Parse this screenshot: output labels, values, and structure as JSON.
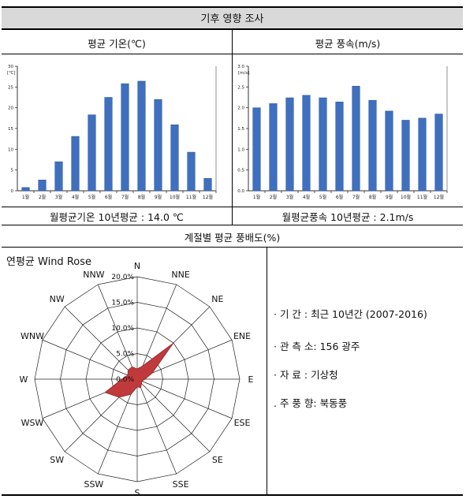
{
  "header": {
    "title": "기후 영향 조사"
  },
  "temp_panel": {
    "title": "평균 기온(℃)",
    "footer": "월평균기온 10년평균 : 14.0 ℃"
  },
  "wind_panel": {
    "title": "평균 풍속(m/s)",
    "footer": "월평균풍속 10년평균 : 2.1m/s"
  },
  "rose_section": {
    "title": "계절별 평균 풍배도(%)"
  },
  "info": {
    "period": "· 기    간 : 최근 10년간 (2007-2016)",
    "station": "· 관 측 소: 156 광주",
    "source": "· 자    료 : 기상청",
    "main_wind": ". 주 풍 향: 북동풍"
  },
  "chart_data": [
    {
      "type": "bar",
      "title": "평균 기온(℃)",
      "ylabel": "[℃]",
      "categories": [
        "1월",
        "2월",
        "3월",
        "4월",
        "5월",
        "6월",
        "7월",
        "8월",
        "9월",
        "10월",
        "11월",
        "12월"
      ],
      "values": [
        0.8,
        2.6,
        7.0,
        13.1,
        18.3,
        22.5,
        25.8,
        26.4,
        22.0,
        15.9,
        9.3,
        3.0
      ],
      "ylim": [
        0,
        30
      ],
      "yticks": [
        0,
        5,
        10,
        15,
        20,
        25,
        30
      ],
      "bar_color": "#3f6fbf",
      "grid": false
    },
    {
      "type": "bar",
      "title": "평균 풍속(m/s)",
      "ylabel": "[m/s]",
      "categories": [
        "1월",
        "2월",
        "3월",
        "4월",
        "5월",
        "6월",
        "7월",
        "8월",
        "9월",
        "10월",
        "11월",
        "12월"
      ],
      "values": [
        2.0,
        2.1,
        2.24,
        2.3,
        2.24,
        2.14,
        2.52,
        2.18,
        1.92,
        1.7,
        1.75,
        1.85
      ],
      "ylim": [
        0,
        3.0
      ],
      "yticks": [
        0.0,
        0.5,
        1.0,
        1.5,
        2.0,
        2.5,
        3.0
      ],
      "bar_color": "#3f6fbf",
      "grid": false
    },
    {
      "type": "radar",
      "title": "연평균 Wind Rose",
      "directions": [
        "N",
        "NNE",
        "NE",
        "ENE",
        "E",
        "ESE",
        "SE",
        "SSE",
        "S",
        "SSW",
        "SW",
        "WSW",
        "W",
        "WNW",
        "NW",
        "NNW"
      ],
      "values": [
        2.0,
        2.8,
        10.0,
        3.2,
        1.5,
        1.0,
        1.2,
        1.8,
        1.5,
        3.2,
        5.0,
        6.8,
        3.0,
        2.0,
        2.5,
        2.6
      ],
      "rlim": [
        0,
        20
      ],
      "rticks": [
        "0.0%",
        "5.0%",
        "10.0%",
        "15.0%",
        "20.0%"
      ],
      "rtick_values": [
        0,
        5,
        10,
        15,
        20
      ],
      "fill_color": "#c0393b"
    }
  ]
}
